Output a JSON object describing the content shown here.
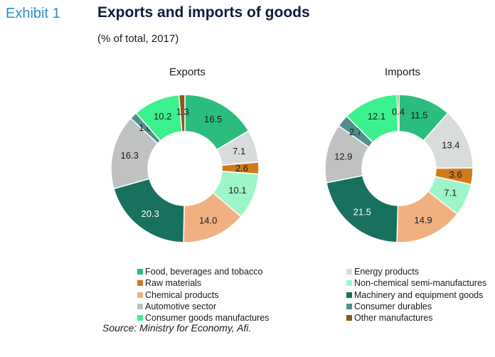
{
  "header": {
    "exhibit": "Exhibit 1",
    "title": "Exports and imports of goods",
    "subtitle": "(% of total, 2017)"
  },
  "source": "Source: Ministry for Economy, Afi.",
  "colors": {
    "Food, beverages and tobacco": "#2bbd7e",
    "Energy products": "#d9dcdc",
    "Raw materials": "#d17a1c",
    "Non-chemical semi-manufactures": "#9ef5c8",
    "Chemical products": "#f1b07f",
    "Machinery and equipment goods": "#18705e",
    "Automotive sector": "#c0c2c2",
    "Consumer durables": "#4f8f8c",
    "Consumer goods manufactures": "#3df08e",
    "Other manufactures": "#8a5a1e"
  },
  "legend": [
    "Food, beverages and tobacco",
    "Energy products",
    "Raw materials",
    "Non-chemical semi-manufactures",
    "Chemical products",
    "Machinery and equipment goods",
    "Automotive sector",
    "Consumer durables",
    "Consumer goods manufactures",
    "Other manufactures"
  ],
  "chart_data": [
    {
      "type": "pie",
      "title": "Exports",
      "categories": [
        "Food, beverages and tobacco",
        "Energy products",
        "Raw materials",
        "Non-chemical semi-manufactures",
        "Chemical products",
        "Machinery and equipment goods",
        "Automotive sector",
        "Consumer durables",
        "Consumer goods manufactures",
        "Other manufactures"
      ],
      "values": [
        16.5,
        7.1,
        2.6,
        10.1,
        14.0,
        20.3,
        16.3,
        1.6,
        10.2,
        1.3
      ],
      "labels": [
        "16.5",
        "7.1",
        "2.6",
        "10.1",
        "14.0",
        "20.3",
        "16.3",
        "1.6",
        "10.2",
        "1.3"
      ]
    },
    {
      "type": "pie",
      "title": "Imports",
      "categories": [
        "Food, beverages and tobacco",
        "Energy products",
        "Raw materials",
        "Non-chemical semi-manufactures",
        "Chemical products",
        "Machinery and equipment goods",
        "Automotive sector",
        "Consumer durables",
        "Consumer goods manufactures",
        "Other manufactures"
      ],
      "values": [
        11.5,
        13.4,
        3.6,
        7.1,
        14.9,
        21.5,
        12.9,
        2.7,
        12.1,
        0.4
      ],
      "labels": [
        "11.5",
        "13.4",
        "3.6",
        "7.1",
        "14.9",
        "21.5",
        "12.9",
        "2.7",
        "12.1",
        "0.4"
      ]
    }
  ]
}
